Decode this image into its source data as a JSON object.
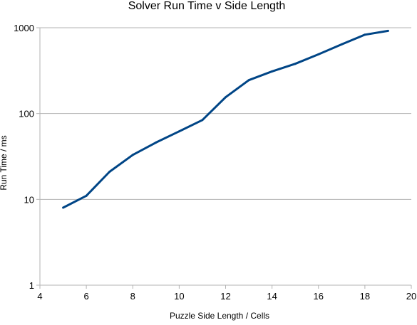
{
  "chart_data": {
    "type": "line",
    "title": "Solver Run Time v Side Length",
    "xlabel": "Puzzle Side Length / Cells",
    "ylabel": "Run Time / ms",
    "x_scale": "linear",
    "y_scale": "log",
    "xlim": [
      4,
      20
    ],
    "ylim": [
      1,
      1000
    ],
    "x_ticks": [
      4,
      6,
      8,
      10,
      12,
      14,
      16,
      18,
      20
    ],
    "x_tick_labels": [
      "4",
      "6",
      "8",
      "10",
      "12",
      "14",
      "16",
      "18",
      "20"
    ],
    "y_ticks": [
      1,
      10,
      100,
      1000
    ],
    "y_tick_labels": [
      "1",
      "10",
      "100",
      "1000"
    ],
    "grid": "horizontal",
    "legend": "none",
    "series": [
      {
        "color": "#004586",
        "points": [
          {
            "x": 5,
            "y": 8
          },
          {
            "x": 6,
            "y": 11
          },
          {
            "x": 7,
            "y": 21
          },
          {
            "x": 8,
            "y": 33
          },
          {
            "x": 9,
            "y": 46
          },
          {
            "x": 10,
            "y": 62
          },
          {
            "x": 11,
            "y": 84
          },
          {
            "x": 12,
            "y": 155
          },
          {
            "x": 13,
            "y": 245
          },
          {
            "x": 14,
            "y": 310
          },
          {
            "x": 15,
            "y": 380
          },
          {
            "x": 16,
            "y": 490
          },
          {
            "x": 17,
            "y": 640
          },
          {
            "x": 18,
            "y": 830
          },
          {
            "x": 19,
            "y": 920
          }
        ]
      }
    ]
  }
}
